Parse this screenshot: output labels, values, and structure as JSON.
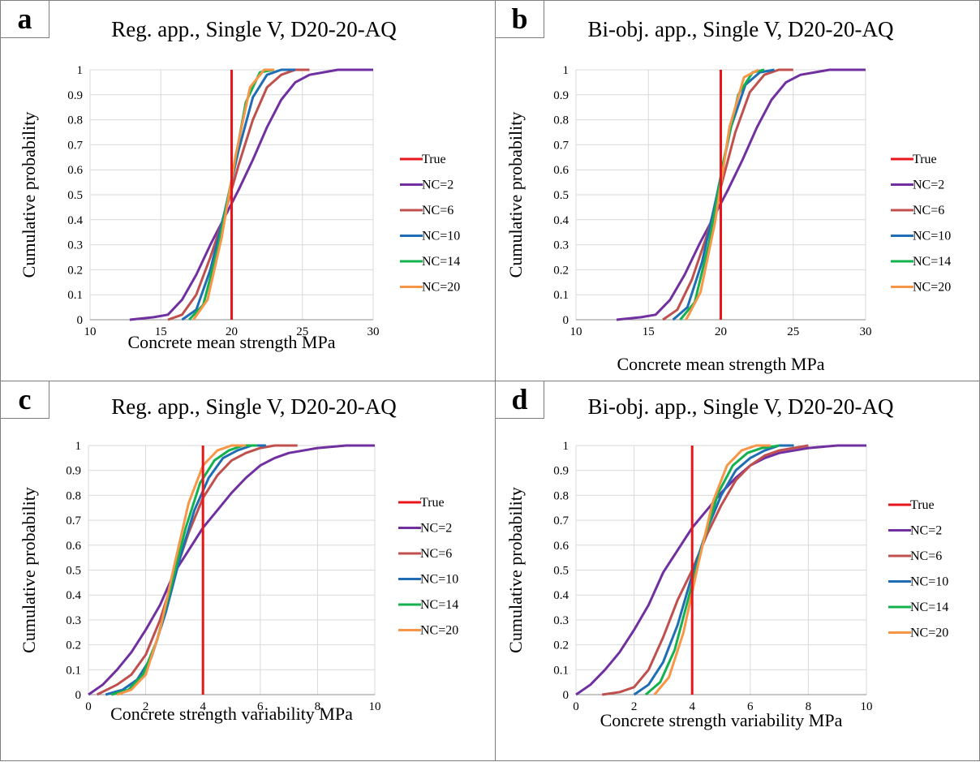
{
  "series_colors": {
    "True": "#e8161b",
    "NC=2": "#7030a0",
    "NC=6": "#c0504d",
    "NC=10": "#1f6eb5",
    "NC=14": "#13b24f",
    "NC=20": "#f79646"
  },
  "chart_data": [
    {
      "type": "line",
      "letter": "a",
      "title": "Reg. app., Single V, D20-20-AQ",
      "xlabel": "Concrete mean strength MPa",
      "ylabel": "Cumulative probability",
      "xlim": [
        10,
        30
      ],
      "ylim": [
        0,
        1
      ],
      "xticks": [
        "10",
        "15",
        "20",
        "25",
        "30"
      ],
      "yticks": [
        "0",
        "0.1",
        "0.2",
        "0.3",
        "0.4",
        "0.5",
        "0.6",
        "0.7",
        "0.8",
        "0.9",
        "1"
      ],
      "grid": true,
      "legend": "right",
      "true_value": 20,
      "series": [
        {
          "name": "True",
          "x": [
            20,
            20
          ],
          "y": [
            0,
            1
          ]
        },
        {
          "name": "NC=2",
          "x": [
            12.8,
            14.5,
            15.5,
            16.5,
            17.5,
            18.5,
            19.5,
            20.5,
            21.5,
            22.5,
            23.5,
            24.5,
            25.5,
            26.5,
            27.5,
            30
          ],
          "y": [
            0,
            0.01,
            0.02,
            0.08,
            0.18,
            0.3,
            0.41,
            0.52,
            0.64,
            0.77,
            0.88,
            0.95,
            0.98,
            0.99,
            1,
            1
          ]
        },
        {
          "name": "NC=6",
          "x": [
            15.5,
            16.5,
            17.5,
            18.5,
            19.5,
            20.5,
            21.5,
            22.5,
            23.5,
            24.5,
            25.5
          ],
          "y": [
            0,
            0.02,
            0.1,
            0.25,
            0.42,
            0.62,
            0.8,
            0.93,
            0.98,
            1,
            1
          ]
        },
        {
          "name": "NC=10",
          "x": [
            16.5,
            17.5,
            18.5,
            19.5,
            20.5,
            21.5,
            22.5,
            23.5,
            24.5
          ],
          "y": [
            0,
            0.04,
            0.2,
            0.43,
            0.68,
            0.89,
            0.98,
            1,
            1
          ]
        },
        {
          "name": "NC=14",
          "x": [
            17.0,
            18.0,
            19.0,
            20.0,
            21.0,
            22.0,
            23.0
          ],
          "y": [
            0,
            0.06,
            0.28,
            0.56,
            0.87,
            0.99,
            1
          ]
        },
        {
          "name": "NC=20",
          "x": [
            17.3,
            18.3,
            19.3,
            20.3,
            21.3,
            22.3,
            23.0
          ],
          "y": [
            0,
            0.08,
            0.33,
            0.66,
            0.93,
            1,
            1
          ]
        }
      ]
    },
    {
      "type": "line",
      "letter": "b",
      "title": "Bi-obj. app., Single V, D20-20-AQ",
      "xlabel": "Concrete mean strength MPa",
      "ylabel": "Cumulative probability",
      "xlim": [
        10,
        30
      ],
      "ylim": [
        0,
        1
      ],
      "xticks": [
        "10",
        "15",
        "20",
        "25",
        "30"
      ],
      "yticks": [
        "0",
        "0.1",
        "0.2",
        "0.3",
        "0.4",
        "0.5",
        "0.6",
        "0.7",
        "0.8",
        "0.9",
        "1"
      ],
      "grid": true,
      "legend": "right",
      "true_value": 20,
      "series": [
        {
          "name": "True",
          "x": [
            20,
            20
          ],
          "y": [
            0,
            1
          ]
        },
        {
          "name": "NC=2",
          "x": [
            12.8,
            14.5,
            15.5,
            16.5,
            17.5,
            18.5,
            19.5,
            20.5,
            21.5,
            22.5,
            23.5,
            24.5,
            25.5,
            26.5,
            27.5,
            30
          ],
          "y": [
            0,
            0.01,
            0.02,
            0.08,
            0.18,
            0.3,
            0.41,
            0.52,
            0.64,
            0.77,
            0.88,
            0.95,
            0.98,
            0.99,
            1,
            1
          ]
        },
        {
          "name": "NC=6",
          "x": [
            16.0,
            17.0,
            18.0,
            19.0,
            20.0,
            21.0,
            22.0,
            23.0,
            24.0,
            25.0
          ],
          "y": [
            0,
            0.04,
            0.16,
            0.33,
            0.53,
            0.75,
            0.91,
            0.98,
            1,
            1
          ]
        },
        {
          "name": "NC=10",
          "x": [
            16.7,
            17.7,
            18.7,
            19.7,
            20.7,
            21.7,
            22.7,
            23.7
          ],
          "y": [
            0,
            0.05,
            0.23,
            0.49,
            0.77,
            0.94,
            0.99,
            1
          ]
        },
        {
          "name": "NC=14",
          "x": [
            17.2,
            18.2,
            19.2,
            20.2,
            21.2,
            22.2,
            23.0
          ],
          "y": [
            0,
            0.07,
            0.31,
            0.64,
            0.9,
            0.99,
            1
          ]
        },
        {
          "name": "NC=20",
          "x": [
            17.6,
            18.6,
            19.6,
            20.6,
            21.6,
            22.6
          ],
          "y": [
            0,
            0.11,
            0.39,
            0.77,
            0.97,
            1
          ]
        }
      ]
    },
    {
      "type": "line",
      "letter": "c",
      "title": "Reg. app., Single V, D20-20-AQ",
      "xlabel": "Concrete strength variability MPa",
      "ylabel": "Cumulative probability",
      "xlim": [
        0,
        10
      ],
      "ylim": [
        0,
        1
      ],
      "xticks": [
        "0",
        "2",
        "4",
        "6",
        "8",
        "10"
      ],
      "yticks": [
        "0",
        "0.1",
        "0.2",
        "0.3",
        "0.4",
        "0.5",
        "0.6",
        "0.7",
        "0.8",
        "0.9",
        "1"
      ],
      "grid": true,
      "legend": "right",
      "true_value": 4,
      "series": [
        {
          "name": "True",
          "x": [
            4,
            4
          ],
          "y": [
            0,
            1
          ]
        },
        {
          "name": "NC=2",
          "x": [
            0,
            0.5,
            1,
            1.5,
            2,
            2.5,
            3,
            3.5,
            4,
            4.5,
            5,
            5.5,
            6,
            6.5,
            7,
            8,
            9,
            10
          ],
          "y": [
            0,
            0.04,
            0.1,
            0.17,
            0.26,
            0.36,
            0.49,
            0.58,
            0.67,
            0.74,
            0.81,
            0.87,
            0.92,
            0.95,
            0.97,
            0.99,
            1,
            1
          ]
        },
        {
          "name": "NC=6",
          "x": [
            0.3,
            1,
            1.5,
            2,
            2.5,
            3,
            3.5,
            4,
            4.5,
            5,
            5.5,
            6,
            6.5,
            7.3
          ],
          "y": [
            0,
            0.04,
            0.08,
            0.16,
            0.3,
            0.48,
            0.65,
            0.79,
            0.88,
            0.94,
            0.97,
            0.99,
            1,
            1
          ]
        },
        {
          "name": "NC=10",
          "x": [
            0.6,
            1.2,
            1.7,
            2.2,
            2.7,
            3.2,
            3.7,
            4.2,
            4.7,
            5.2,
            5.7,
            6.2
          ],
          "y": [
            0,
            0.02,
            0.06,
            0.15,
            0.33,
            0.55,
            0.74,
            0.87,
            0.95,
            0.98,
            1,
            1
          ]
        },
        {
          "name": "NC=14",
          "x": [
            0.8,
            1.4,
            1.9,
            2.4,
            2.9,
            3.4,
            3.9,
            4.4,
            4.9,
            5.4,
            5.9
          ],
          "y": [
            0,
            0.02,
            0.08,
            0.22,
            0.44,
            0.67,
            0.85,
            0.94,
            0.98,
            1,
            1
          ]
        },
        {
          "name": "NC=20",
          "x": [
            1.0,
            1.5,
            2.0,
            2.5,
            3.0,
            3.5,
            4.0,
            4.5,
            5.0,
            5.5
          ],
          "y": [
            0,
            0.02,
            0.08,
            0.26,
            0.52,
            0.77,
            0.92,
            0.98,
            1,
            1
          ]
        }
      ]
    },
    {
      "type": "line",
      "letter": "d",
      "title": "Bi-obj. app., Single V, D20-20-AQ",
      "xlabel": "Concrete strength variability MPa",
      "ylabel": "Cumulative probability",
      "xlim": [
        0,
        10
      ],
      "ylim": [
        0,
        1
      ],
      "xticks": [
        "0",
        "2",
        "4",
        "6",
        "8",
        "10"
      ],
      "yticks": [
        "0",
        "0.1",
        "0.2",
        "0.3",
        "0.4",
        "0.5",
        "0.6",
        "0.7",
        "0.8",
        "0.9",
        "1"
      ],
      "grid": true,
      "legend": "right",
      "true_value": 4,
      "series": [
        {
          "name": "True",
          "x": [
            4,
            4
          ],
          "y": [
            0,
            1
          ]
        },
        {
          "name": "NC=2",
          "x": [
            0,
            0.5,
            1,
            1.5,
            2,
            2.5,
            3,
            3.5,
            4,
            4.5,
            5,
            5.5,
            6,
            6.5,
            7,
            8,
            9,
            10
          ],
          "y": [
            0,
            0.04,
            0.1,
            0.17,
            0.26,
            0.36,
            0.49,
            0.58,
            0.67,
            0.74,
            0.81,
            0.87,
            0.92,
            0.95,
            0.97,
            0.99,
            1,
            1
          ]
        },
        {
          "name": "NC=6",
          "x": [
            0.9,
            1.5,
            2.0,
            2.5,
            3.0,
            3.5,
            4.0,
            4.5,
            5.0,
            5.5,
            6.0,
            6.5,
            7.0,
            8.0
          ],
          "y": [
            0,
            0.01,
            0.03,
            0.1,
            0.23,
            0.38,
            0.5,
            0.64,
            0.76,
            0.86,
            0.92,
            0.96,
            0.98,
            1
          ]
        },
        {
          "name": "NC=10",
          "x": [
            2.0,
            2.5,
            3.0,
            3.5,
            4.0,
            4.5,
            5.0,
            5.5,
            6.0,
            6.5,
            7.0,
            7.5
          ],
          "y": [
            0,
            0.04,
            0.13,
            0.28,
            0.48,
            0.66,
            0.8,
            0.9,
            0.95,
            0.98,
            1,
            1
          ]
        },
        {
          "name": "NC=14",
          "x": [
            2.4,
            2.9,
            3.4,
            3.9,
            4.4,
            4.9,
            5.4,
            5.9,
            6.4,
            7.0
          ],
          "y": [
            0,
            0.05,
            0.18,
            0.4,
            0.62,
            0.81,
            0.92,
            0.97,
            0.99,
            1
          ]
        },
        {
          "name": "NC=20",
          "x": [
            2.7,
            3.2,
            3.7,
            4.2,
            4.7,
            5.2,
            5.7,
            6.2,
            6.7
          ],
          "y": [
            0,
            0.07,
            0.25,
            0.52,
            0.77,
            0.92,
            0.98,
            1,
            1
          ]
        }
      ]
    }
  ]
}
